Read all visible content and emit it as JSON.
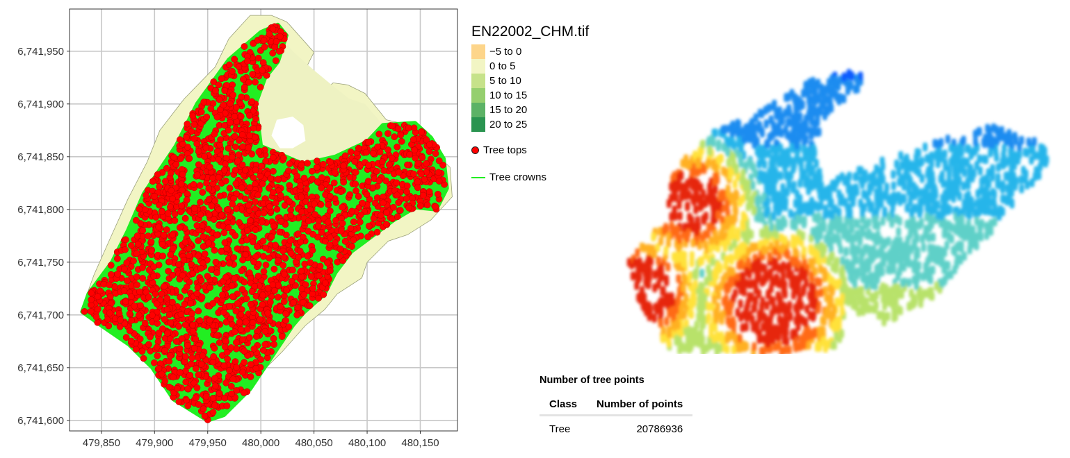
{
  "chart_data": [
    {
      "type": "scatter",
      "title": "",
      "xlabel": "",
      "ylabel": "",
      "xlim": [
        479820,
        480185
      ],
      "ylim": [
        6741590,
        6741990
      ],
      "x_ticks": [
        "479,850",
        "479,900",
        "479,950",
        "480,000",
        "480,050",
        "480,100",
        "480,150"
      ],
      "y_ticks": [
        "6,741,600",
        "6,741,650",
        "6,741,700",
        "6,741,750",
        "6,741,800",
        "6,741,850",
        "6,741,900",
        "6,741,950"
      ],
      "x_tick_values": [
        479850,
        479900,
        479950,
        480000,
        480050,
        480100,
        480150
      ],
      "y_tick_values": [
        6741600,
        6741650,
        6741700,
        6741750,
        6741800,
        6741850,
        6741900,
        6741950
      ],
      "grid": true,
      "legend_placement": "right",
      "raster_title": "EN22002_CHM.tif",
      "raster_classes": [
        {
          "label": "−5 to 0",
          "color": "#fdd58a"
        },
        {
          "label": "0 to 5",
          "color": "#f2f5c4"
        },
        {
          "label": "5 to 10",
          "color": "#c6e28a"
        },
        {
          "label": "10 to 15",
          "color": "#95cf6e"
        },
        {
          "label": "15 to 20",
          "color": "#5cb266"
        },
        {
          "label": "20 to 25",
          "color": "#2a9450"
        }
      ],
      "layers": [
        {
          "name": "Tree tops",
          "color": "#ff0000"
        },
        {
          "name": "Tree crowns",
          "color": "#22ee22"
        }
      ],
      "study_area_outline": {
        "x": [
          479947,
          479935,
          479915,
          479900,
          479880,
          479860,
          479840,
          479833,
          479843,
          479858,
          479875,
          479893,
          479905,
          479928,
          479957,
          479970,
          479990,
          480010,
          480024,
          480027,
          480050,
          480042,
          480036,
          480032,
          480052,
          480068,
          480082,
          480098,
          480118,
          480140,
          480162,
          480178,
          480180,
          480160,
          480138,
          480120,
          480110,
          480100,
          480095,
          480072,
          480060,
          480042,
          480020,
          479990,
          479967,
          479950
        ],
        "y": [
          6741603,
          6741610,
          6741640,
          6741660,
          6741680,
          6741695,
          6741700,
          6741710,
          6741738,
          6741772,
          6741810,
          6741845,
          6741875,
          6741905,
          6741935,
          6741962,
          6741984,
          6741984,
          6741978,
          6741975,
          6741949,
          6741933,
          6741918,
          6741900,
          6741905,
          6741920,
          6741918,
          6741910,
          6741885,
          6741880,
          6741855,
          6741840,
          6741812,
          6741790,
          6741776,
          6741770,
          6741760,
          6741750,
          6741735,
          6741720,
          6741705,
          6741690,
          6741665,
          6741635,
          6741610,
          6741600
        ]
      },
      "tree_tops_region": {
        "x": [
          479950,
          479918,
          479898,
          479876,
          479850,
          479832,
          479838,
          479860,
          479875,
          479890,
          479920,
          479940,
          479970,
          480000,
          480016,
          480024,
          480016,
          480004,
          479995,
          480000,
          480040,
          480070,
          480100,
          480115,
          480145,
          480160,
          480172,
          480175,
          480165,
          480145,
          480125,
          480105,
          480085,
          480070,
          480060,
          480040,
          480030,
          480010,
          479990,
          479965
        ],
        "y": [
          6741600,
          6741620,
          6741650,
          6741672,
          6741690,
          6741703,
          6741720,
          6741750,
          6741780,
          6741815,
          6741860,
          6741900,
          6741942,
          6741968,
          6741975,
          6741965,
          6741940,
          6741925,
          6741900,
          6741860,
          6741843,
          6741850,
          6741864,
          6741880,
          6741882,
          6741868,
          6741848,
          6741820,
          6741800,
          6741802,
          6741790,
          6741775,
          6741760,
          6741740,
          6741720,
          6741702,
          6741690,
          6741660,
          6741630,
          6741605
        ]
      },
      "open_area": {
        "x": [
          479995,
          480010,
          480030,
          480050,
          480068,
          480083,
          480098,
          480115,
          480098,
          480080,
          480060,
          480042,
          480030,
          480015,
          479998
        ],
        "y": [
          6741955,
          6741975,
          6741950,
          6741932,
          6741917,
          6741905,
          6741900,
          6741880,
          6741865,
          6741855,
          6741846,
          6741845,
          6741842,
          6741848,
          6741870
        ]
      },
      "cleared_patch": {
        "x": [
          480015,
          480010,
          480018,
          480030,
          480042,
          480040,
          480030
        ],
        "y": [
          6741885,
          6741870,
          6741858,
          6741858,
          6741865,
          6741880,
          6741888
        ]
      }
    }
  ],
  "point_cloud_colors": [
    "#0a5cff",
    "#1b8cf0",
    "#27b5ea",
    "#5fd0c8",
    "#b8e26a",
    "#ffe23a",
    "#ffb024",
    "#ff6a16",
    "#e6280e"
  ],
  "table": {
    "caption": "Number of tree points",
    "headers": [
      "Class",
      "Number of points"
    ],
    "rows": [
      [
        "Tree",
        "20786936"
      ]
    ]
  }
}
